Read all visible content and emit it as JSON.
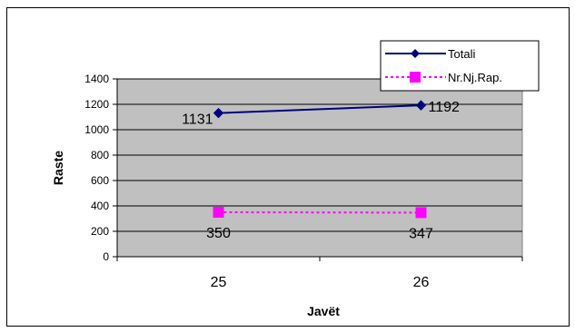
{
  "chart_data": {
    "type": "line",
    "categories": [
      "25",
      "26"
    ],
    "series": [
      {
        "name": "Totali",
        "values": [
          1131,
          1192
        ],
        "color": "#000080",
        "marker": "diamond",
        "line": "solid"
      },
      {
        "name": "Nr.Nj.Rap.",
        "values": [
          350,
          347
        ],
        "color": "#ff00ff",
        "marker": "square",
        "line": "dashed"
      }
    ],
    "title": "",
    "xlabel": "Javët",
    "ylabel": "Raste",
    "ylim": [
      0,
      1400
    ],
    "yticks": [
      "0",
      "200",
      "400",
      "600",
      "800",
      "1000",
      "1200",
      "1400"
    ],
    "grid": true,
    "plot_background": "#c0c0c0",
    "legend_position": "top-right"
  }
}
